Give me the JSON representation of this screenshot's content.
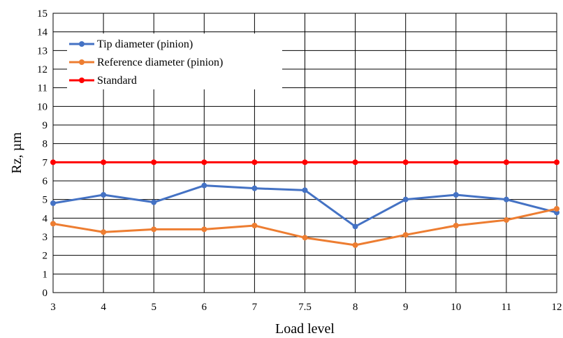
{
  "chart_data": {
    "type": "line",
    "categories": [
      "3",
      "4",
      "5",
      "6",
      "7",
      "7.5",
      "8",
      "9",
      "10",
      "11",
      "12"
    ],
    "xlabel": "Load level",
    "ylabel": "Rz, µm",
    "ylim": [
      0,
      15
    ],
    "yticks": [
      "0",
      "1",
      "2",
      "3",
      "4",
      "5",
      "6",
      "7",
      "8",
      "9",
      "10",
      "11",
      "12",
      "13",
      "14",
      "15"
    ],
    "grid": true,
    "legend_position": "top-left",
    "series": [
      {
        "name": "Tip diameter (pinion)",
        "color": "#4472c4",
        "values": [
          4.8,
          5.25,
          4.85,
          5.75,
          5.6,
          5.5,
          3.55,
          5.0,
          5.25,
          5.0,
          4.3
        ]
      },
      {
        "name": "Reference diameter (pinion)",
        "color": "#ed7d31",
        "values": [
          3.7,
          3.25,
          3.4,
          3.4,
          3.6,
          2.95,
          2.55,
          3.1,
          3.6,
          3.9,
          4.5
        ]
      },
      {
        "name": "Standard",
        "color": "#ff0000",
        "values": [
          7,
          7,
          7,
          7,
          7,
          7,
          7,
          7,
          7,
          7,
          7
        ]
      }
    ]
  }
}
